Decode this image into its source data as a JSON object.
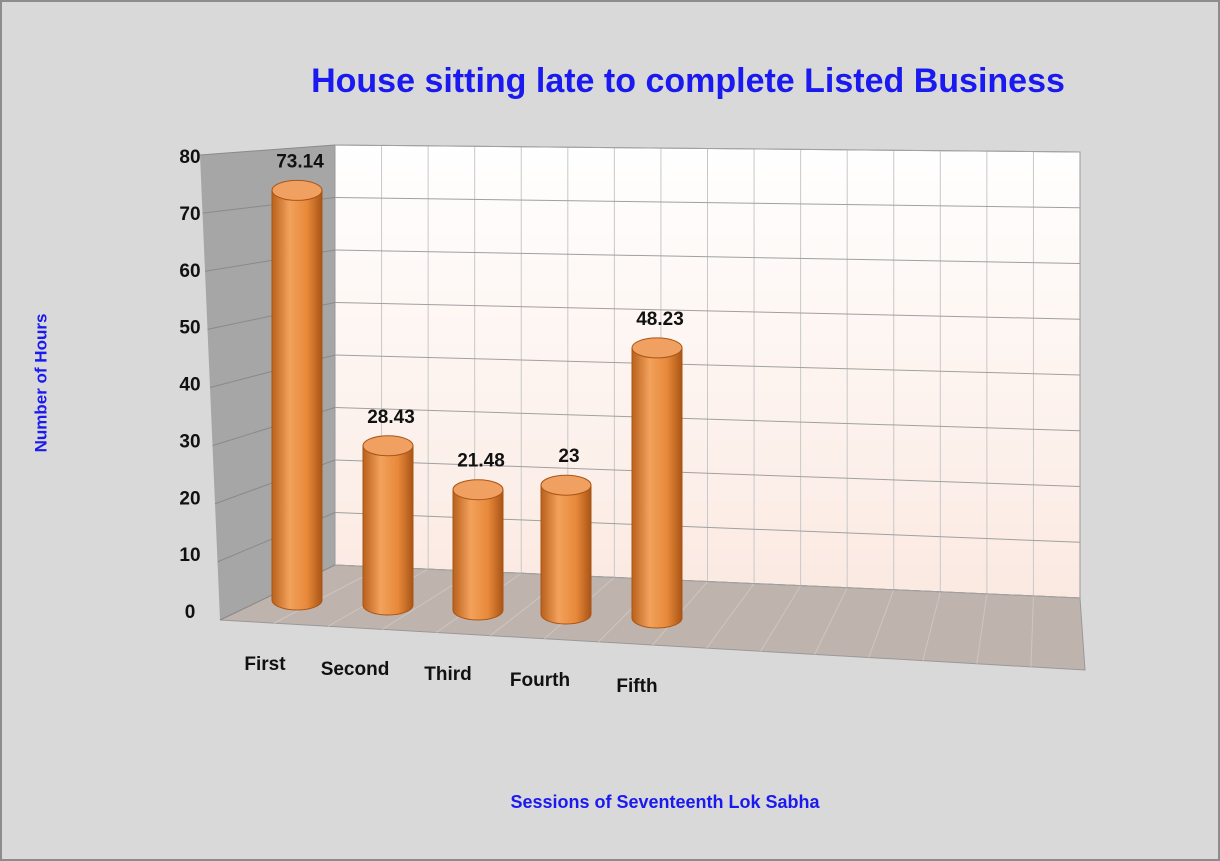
{
  "chart_data": {
    "type": "bar",
    "title": "House sitting late to complete Listed Business",
    "x_label": "Sessions of Seventeenth Lok Sabha",
    "y_label": "Number of Hours",
    "categories": [
      "First",
      "Second",
      "Third",
      "Fourth",
      "Fifth"
    ],
    "values": [
      73.14,
      28.43,
      21.48,
      23,
      48.23
    ],
    "color": "#e8893a",
    "ylim": [
      0,
      80
    ],
    "yticks": [
      0,
      10,
      20,
      30,
      40,
      50,
      60,
      70,
      80
    ],
    "grid": true
  }
}
